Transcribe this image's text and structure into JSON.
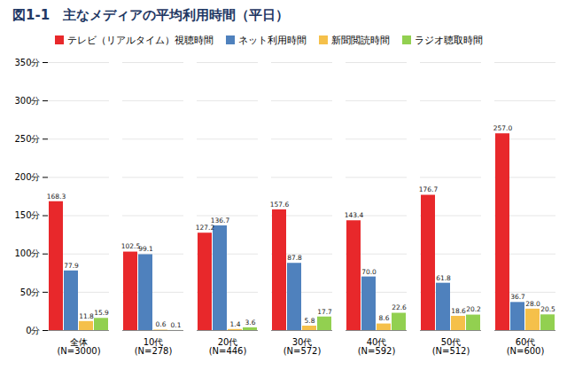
{
  "chart_data": {
    "type": "bar",
    "title": "図1-1　主なメディアの平均利用時間（平日）",
    "categories": [
      "全体\n(N=3000)",
      "10代\n(N=278)",
      "20代\n(N=446)",
      "30代\n(N=572)",
      "40代\n(N=592)",
      "50代\n(N=512)",
      "60代\n(N=600)"
    ],
    "series": [
      {
        "name": "テレビ（リアルタイム）視聴時間",
        "color": "#e8282b",
        "values": [
          168.3,
          102.5,
          127.2,
          157.6,
          143.4,
          176.7,
          257.0
        ],
        "value_labels": [
          "168.3",
          "102.5",
          "127.2",
          "157.6",
          "143.4",
          "176.7",
          "257.0"
        ]
      },
      {
        "name": "ネット利用時間",
        "color": "#4f81bd",
        "values": [
          77.9,
          99.1,
          136.7,
          87.8,
          70.0,
          61.8,
          36.7
        ],
        "value_labels": [
          "77.9",
          "99.1",
          "136.7",
          "87.8",
          "70.0",
          "61.8",
          "36.7"
        ]
      },
      {
        "name": "新聞閲読時間",
        "color": "#f5c04a",
        "values": [
          11.8,
          0.6,
          1.4,
          5.8,
          8.6,
          18.6,
          28.0
        ],
        "value_labels": [
          "11.8",
          "0.6",
          "1.4",
          "5.8",
          "8.6",
          "18.6",
          "28.0"
        ]
      },
      {
        "name": "ラジオ聴取時間",
        "color": "#92d050",
        "values": [
          15.9,
          0.1,
          3.6,
          17.7,
          22.6,
          20.2,
          20.5
        ],
        "value_labels": [
          "15.9",
          "0.1",
          "3.6",
          "17.7",
          "22.6",
          "20.2",
          "20.5"
        ]
      }
    ],
    "ylim": [
      0,
      350
    ],
    "yticks": [
      {
        "value": 0,
        "label": "0分"
      },
      {
        "value": 50,
        "label": "50分"
      },
      {
        "value": 100,
        "label": "100分"
      },
      {
        "value": 150,
        "label": "150分"
      },
      {
        "value": 200,
        "label": "200分"
      },
      {
        "value": 250,
        "label": "250分"
      },
      {
        "value": 300,
        "label": "300分"
      },
      {
        "value": 350,
        "label": "350分"
      }
    ],
    "grid": true,
    "legend": "top",
    "data_labels": true
  }
}
